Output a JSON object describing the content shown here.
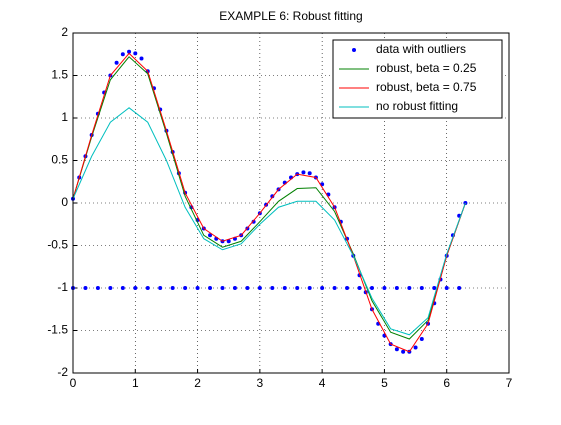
{
  "chart_data": {
    "type": "line",
    "title": "EXAMPLE 6: Robust fitting",
    "x": [
      0,
      0.3,
      0.6,
      0.9,
      1.2,
      1.5,
      1.8,
      2.1,
      2.4,
      2.7,
      3.0,
      3.3,
      3.6,
      3.9,
      4.2,
      4.5,
      4.8,
      5.1,
      5.4,
      5.7,
      6.0,
      6.3
    ],
    "series": [
      {
        "name": "data with outliers",
        "color": "#0000ff",
        "style": "points",
        "x": [
          0,
          0.1,
          0.2,
          0.3,
          0.4,
          0.5,
          0.6,
          0.7,
          0.8,
          0.9,
          1.0,
          1.1,
          1.2,
          1.3,
          1.4,
          1.5,
          1.6,
          1.7,
          1.8,
          1.9,
          2.0,
          2.1,
          2.2,
          2.3,
          2.4,
          2.5,
          2.6,
          2.7,
          2.8,
          2.9,
          3.0,
          3.1,
          3.2,
          3.3,
          3.4,
          3.5,
          3.6,
          3.7,
          3.8,
          3.9,
          4.0,
          4.1,
          4.2,
          4.3,
          4.4,
          4.5,
          4.6,
          4.7,
          4.8,
          4.9,
          5.0,
          5.1,
          5.2,
          5.3,
          5.4,
          5.5,
          5.6,
          5.7,
          5.8,
          5.9,
          6.0,
          6.1,
          6.2,
          6.3,
          0,
          0.2,
          0.4,
          0.6,
          0.8,
          1.0,
          1.2,
          1.4,
          1.6,
          1.8,
          2.0,
          2.2,
          2.4,
          2.6,
          2.8,
          3.0,
          3.2,
          3.4,
          3.6,
          3.8,
          4.0,
          4.2,
          4.4,
          4.6,
          4.8,
          5.0,
          5.2,
          5.4,
          5.6,
          5.8,
          6.0,
          6.2
        ],
        "values": [
          0.05,
          0.3,
          0.55,
          0.8,
          1.05,
          1.3,
          1.5,
          1.65,
          1.75,
          1.78,
          1.76,
          1.7,
          1.55,
          1.35,
          1.1,
          0.85,
          0.6,
          0.35,
          0.12,
          -0.05,
          -0.2,
          -0.3,
          -0.38,
          -0.42,
          -0.45,
          -0.45,
          -0.42,
          -0.38,
          -0.3,
          -0.22,
          -0.12,
          -0.02,
          0.08,
          0.16,
          0.24,
          0.3,
          0.34,
          0.36,
          0.35,
          0.3,
          0.22,
          0.1,
          -0.05,
          -0.22,
          -0.42,
          -0.62,
          -0.85,
          -1.05,
          -1.25,
          -1.42,
          -1.56,
          -1.66,
          -1.72,
          -1.75,
          -1.75,
          -1.7,
          -1.6,
          -1.42,
          -1.18,
          -0.9,
          -0.62,
          -0.38,
          -0.15,
          0.0,
          -1,
          -1,
          -1,
          -1,
          -1,
          -1,
          -1,
          -1,
          -1,
          -1,
          -1,
          -1,
          -1,
          -1,
          -1,
          -1,
          -1,
          -1,
          -1,
          -1,
          -1,
          -1,
          -1,
          -1,
          -1,
          -1,
          -1,
          -1,
          -1,
          -1,
          -1,
          -1
        ]
      },
      {
        "name": "robust, beta = 0.25",
        "color": "#008000",
        "style": "line",
        "values": [
          0.05,
          0.78,
          1.45,
          1.72,
          1.52,
          0.82,
          0.08,
          -0.38,
          -0.52,
          -0.45,
          -0.22,
          0.02,
          0.17,
          0.18,
          -0.1,
          -0.6,
          -1.15,
          -1.52,
          -1.6,
          -1.38,
          -0.62,
          0.0
        ]
      },
      {
        "name": "robust, beta = 0.75",
        "color": "#ff0000",
        "style": "line",
        "values": [
          0.05,
          0.8,
          1.5,
          1.76,
          1.55,
          0.85,
          0.12,
          -0.3,
          -0.45,
          -0.38,
          -0.12,
          0.16,
          0.34,
          0.3,
          -0.05,
          -0.62,
          -1.25,
          -1.66,
          -1.75,
          -1.42,
          -0.62,
          0.0
        ]
      },
      {
        "name": "no robust fitting",
        "color": "#00bfbf",
        "style": "line",
        "values": [
          0.05,
          0.55,
          0.95,
          1.12,
          0.95,
          0.5,
          -0.05,
          -0.42,
          -0.55,
          -0.48,
          -0.25,
          -0.05,
          0.02,
          0.02,
          -0.2,
          -0.62,
          -1.12,
          -1.48,
          -1.55,
          -1.35,
          -0.6,
          0.0
        ]
      }
    ],
    "xlim": [
      0,
      7
    ],
    "xticks": [
      0,
      1,
      2,
      3,
      4,
      5,
      6,
      7
    ],
    "ylim": [
      -2,
      2
    ],
    "yticks": [
      -2,
      -1.5,
      -1,
      -0.5,
      0,
      0.5,
      1,
      1.5,
      2
    ],
    "grid": true,
    "legend": "northeast"
  }
}
